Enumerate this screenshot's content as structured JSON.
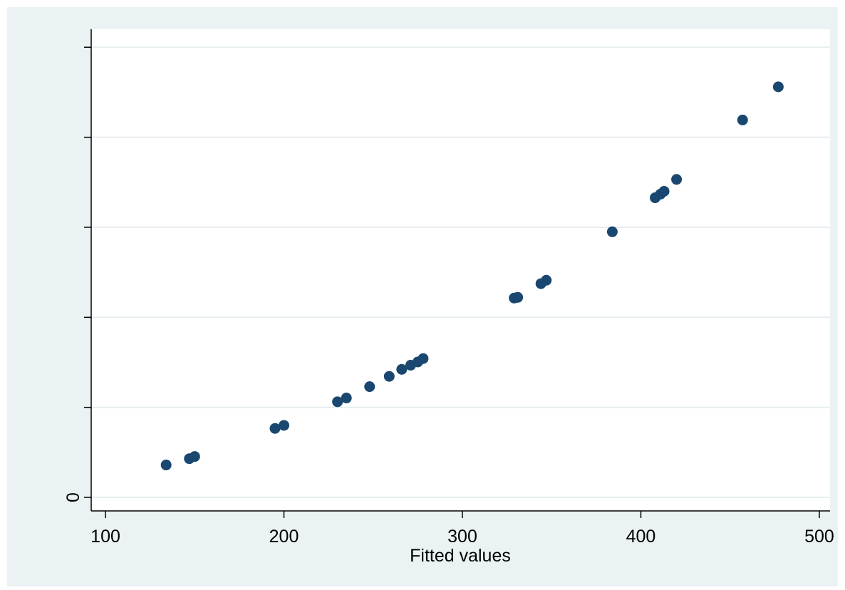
{
  "chart_data": {
    "type": "scatter",
    "title": "",
    "xlabel": "Fitted values",
    "ylabel": "",
    "xlim": [
      92,
      506
    ],
    "ylim": [
      -7.5,
      260
    ],
    "x_ticks": [
      100,
      200,
      300,
      400,
      500
    ],
    "y_ticks": [
      0,
      50,
      100,
      150,
      200,
      250
    ],
    "y_tick_labels": [
      "0",
      "",
      "",
      "",
      "",
      ""
    ],
    "grid": "horizontal",
    "legend": "none",
    "colors": {
      "outer_background": "#eaf2f3",
      "plot_background": "#ffffff",
      "grid": "#e6eef0",
      "marker": "#1a476f",
      "axis": "#000000"
    },
    "points": [
      {
        "x": 134,
        "y": 18
      },
      {
        "x": 147,
        "y": 21.5
      },
      {
        "x": 150,
        "y": 22.7
      },
      {
        "x": 195,
        "y": 38.3
      },
      {
        "x": 200,
        "y": 40
      },
      {
        "x": 230,
        "y": 53.1
      },
      {
        "x": 235,
        "y": 55.2
      },
      {
        "x": 248,
        "y": 61.5
      },
      {
        "x": 259,
        "y": 67.2
      },
      {
        "x": 266,
        "y": 71.1
      },
      {
        "x": 271,
        "y": 73.4
      },
      {
        "x": 275,
        "y": 75.2
      },
      {
        "x": 278,
        "y": 77.1
      },
      {
        "x": 329,
        "y": 110.7
      },
      {
        "x": 331,
        "y": 111.1
      },
      {
        "x": 344,
        "y": 118.7
      },
      {
        "x": 347,
        "y": 120.6
      },
      {
        "x": 384,
        "y": 147.5
      },
      {
        "x": 408,
        "y": 166.4
      },
      {
        "x": 411,
        "y": 168.4
      },
      {
        "x": 413,
        "y": 170
      },
      {
        "x": 420,
        "y": 176.6
      },
      {
        "x": 457,
        "y": 209.6
      },
      {
        "x": 477,
        "y": 228
      }
    ]
  }
}
